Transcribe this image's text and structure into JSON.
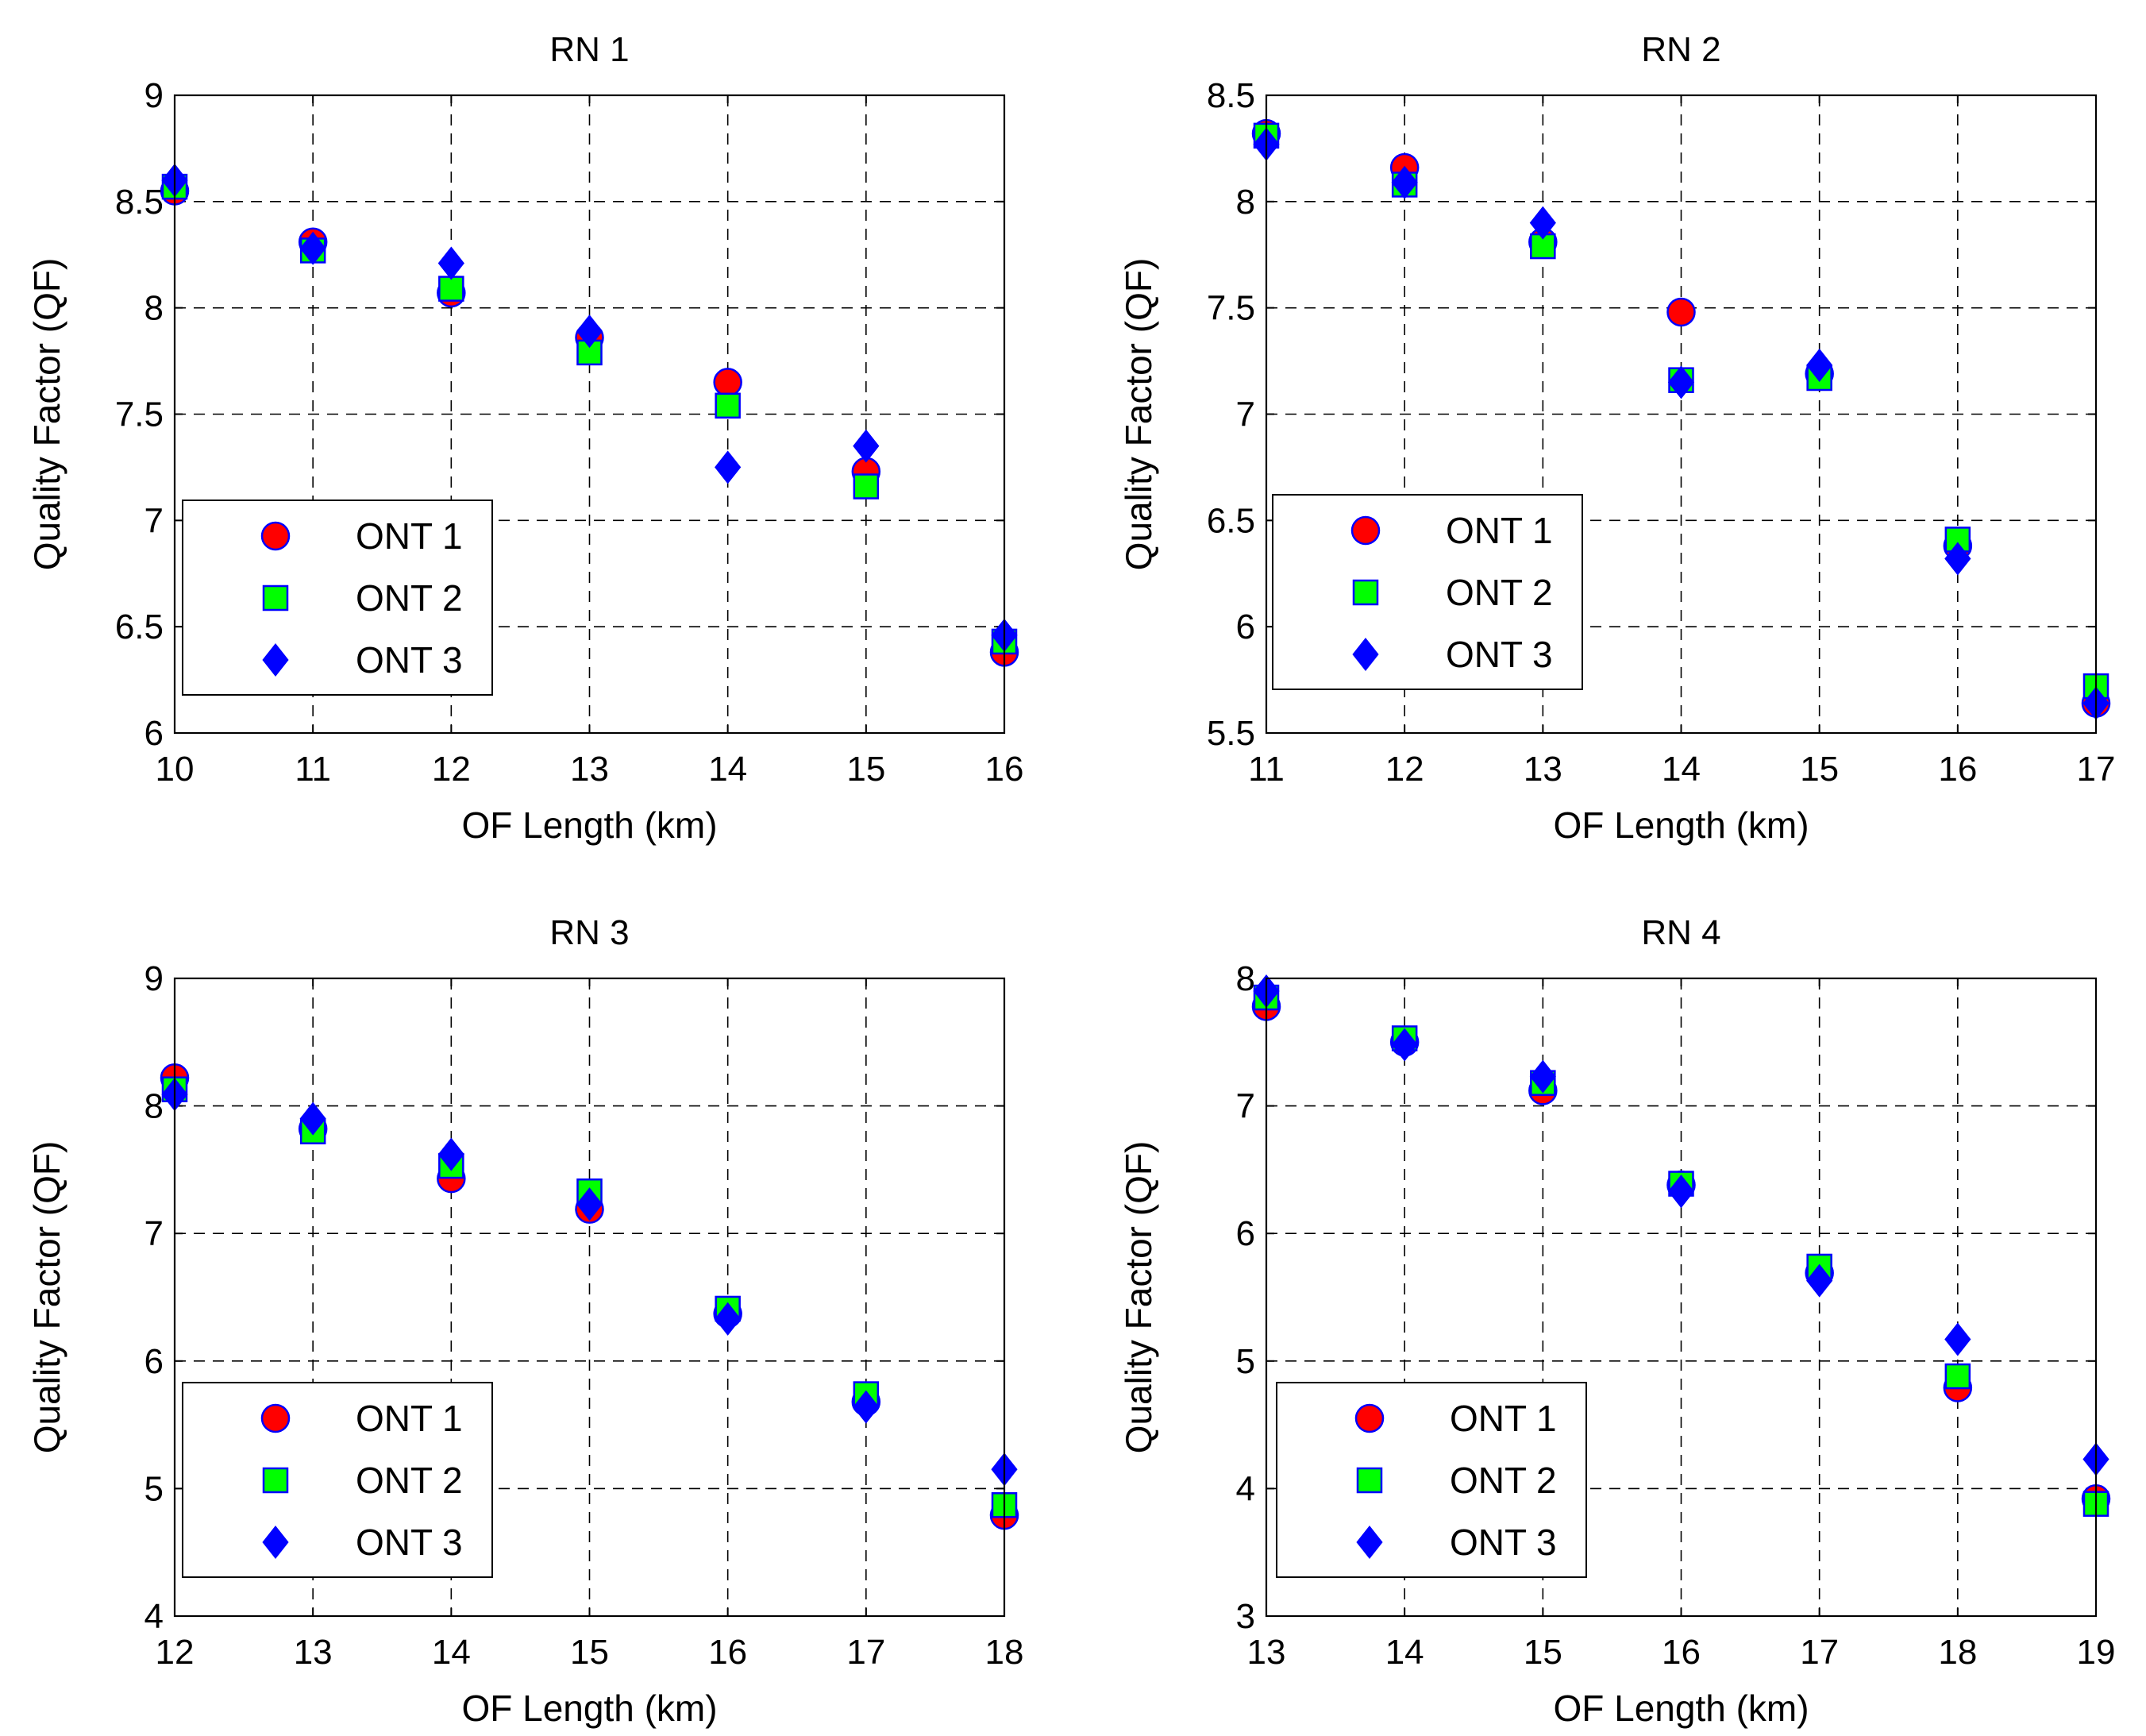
{
  "colors": {
    "ont1": "#ff0000",
    "ont2": "#00ff00",
    "ont3": "#0000ff",
    "marker_edge": "#0000ff",
    "grid": "#000000"
  },
  "chart_data": [
    {
      "type": "scatter",
      "title": "RN 1",
      "xlabel": "OF Length (km)",
      "ylabel": "Quality Factor (QF)",
      "xlim": [
        10,
        16
      ],
      "ylim": [
        6,
        9
      ],
      "xticks": [
        10,
        11,
        12,
        13,
        14,
        15,
        16
      ],
      "xtick_labels": [
        "10",
        "11",
        "12",
        "13",
        "14",
        "15",
        "16"
      ],
      "yticks": [
        6,
        6.5,
        7,
        7.5,
        8,
        8.5,
        9
      ],
      "ytick_labels": [
        "6",
        "6.5",
        "7",
        "7.5",
        "8",
        "8.5",
        "9"
      ],
      "grid": true,
      "legend_position": "lower-left",
      "x": [
        10,
        11,
        12,
        13,
        14,
        15,
        16
      ],
      "series": [
        {
          "name": "ONT 1",
          "marker": "circle",
          "values": [
            8.55,
            8.31,
            8.07,
            7.86,
            7.65,
            7.23,
            6.38
          ]
        },
        {
          "name": "ONT 2",
          "marker": "square",
          "values": [
            8.57,
            8.27,
            8.09,
            7.79,
            7.54,
            7.16,
            6.43
          ]
        },
        {
          "name": "ONT 3",
          "marker": "diamond",
          "values": [
            8.6,
            8.28,
            8.21,
            7.89,
            7.25,
            7.35,
            6.46
          ]
        }
      ]
    },
    {
      "type": "scatter",
      "title": "RN 2",
      "xlabel": "OF Length (km)",
      "ylabel": "Quality Factor (QF)",
      "xlim": [
        11,
        17
      ],
      "ylim": [
        5.5,
        8.5
      ],
      "xticks": [
        11,
        12,
        13,
        14,
        15,
        16,
        17
      ],
      "xtick_labels": [
        "11",
        "12",
        "13",
        "14",
        "15",
        "16",
        "17"
      ],
      "yticks": [
        5.5,
        6,
        6.5,
        7,
        7.5,
        8,
        8.5
      ],
      "ytick_labels": [
        "5.5",
        "6",
        "6.5",
        "7",
        "7.5",
        "8",
        "8.5"
      ],
      "grid": true,
      "legend_position": "lower-left",
      "x": [
        11,
        12,
        13,
        14,
        15,
        16,
        17
      ],
      "series": [
        {
          "name": "ONT 1",
          "marker": "circle",
          "values": [
            8.32,
            8.16,
            7.81,
            7.48,
            7.19,
            6.38,
            5.64
          ]
        },
        {
          "name": "ONT 2",
          "marker": "square",
          "values": [
            8.31,
            8.08,
            7.79,
            7.16,
            7.17,
            6.41,
            5.72
          ]
        },
        {
          "name": "ONT 3",
          "marker": "diamond",
          "values": [
            8.27,
            8.09,
            7.9,
            7.15,
            7.23,
            6.32,
            5.64
          ]
        }
      ]
    },
    {
      "type": "scatter",
      "title": "RN 3",
      "xlabel": "OF Length (km)",
      "ylabel": "Quality Factor (QF)",
      "xlim": [
        12,
        18
      ],
      "ylim": [
        4,
        9
      ],
      "xticks": [
        12,
        13,
        14,
        15,
        16,
        17,
        18
      ],
      "xtick_labels": [
        "12",
        "13",
        "14",
        "15",
        "16",
        "17",
        "18"
      ],
      "yticks": [
        4,
        5,
        6,
        7,
        8,
        9
      ],
      "ytick_labels": [
        "4",
        "5",
        "6",
        "7",
        "8",
        "9"
      ],
      "grid": true,
      "legend_position": "lower-left",
      "x": [
        12,
        13,
        14,
        15,
        16,
        17,
        18
      ],
      "series": [
        {
          "name": "ONT 1",
          "marker": "circle",
          "values": [
            8.22,
            7.82,
            7.43,
            7.19,
            6.37,
            5.68,
            4.79
          ]
        },
        {
          "name": "ONT 2",
          "marker": "square",
          "values": [
            8.13,
            7.8,
            7.53,
            7.33,
            6.41,
            5.74,
            4.87
          ]
        },
        {
          "name": "ONT 3",
          "marker": "diamond",
          "values": [
            8.09,
            7.9,
            7.62,
            7.23,
            6.33,
            5.64,
            5.15
          ]
        }
      ]
    },
    {
      "type": "scatter",
      "title": "RN 4",
      "xlabel": "OF Length (km)",
      "ylabel": "Quality Factor (QF)",
      "xlim": [
        13,
        19
      ],
      "ylim": [
        3,
        8
      ],
      "xticks": [
        13,
        14,
        15,
        16,
        17,
        18,
        19
      ],
      "xtick_labels": [
        "13",
        "14",
        "15",
        "16",
        "17",
        "18",
        "19"
      ],
      "yticks": [
        3,
        4,
        5,
        6,
        7,
        8
      ],
      "ytick_labels": [
        "3",
        "4",
        "5",
        "6",
        "7",
        "8"
      ],
      "grid": true,
      "legend_position": "lower-left",
      "x": [
        13,
        14,
        15,
        16,
        17,
        18,
        19
      ],
      "series": [
        {
          "name": "ONT 1",
          "marker": "circle",
          "values": [
            7.78,
            7.5,
            7.12,
            6.38,
            5.69,
            4.79,
            3.92
          ]
        },
        {
          "name": "ONT 2",
          "marker": "square",
          "values": [
            7.85,
            7.53,
            7.18,
            6.39,
            5.74,
            4.88,
            3.88
          ]
        },
        {
          "name": "ONT 3",
          "marker": "diamond",
          "values": [
            7.9,
            7.48,
            7.23,
            6.33,
            5.63,
            5.17,
            4.23
          ]
        }
      ]
    }
  ]
}
